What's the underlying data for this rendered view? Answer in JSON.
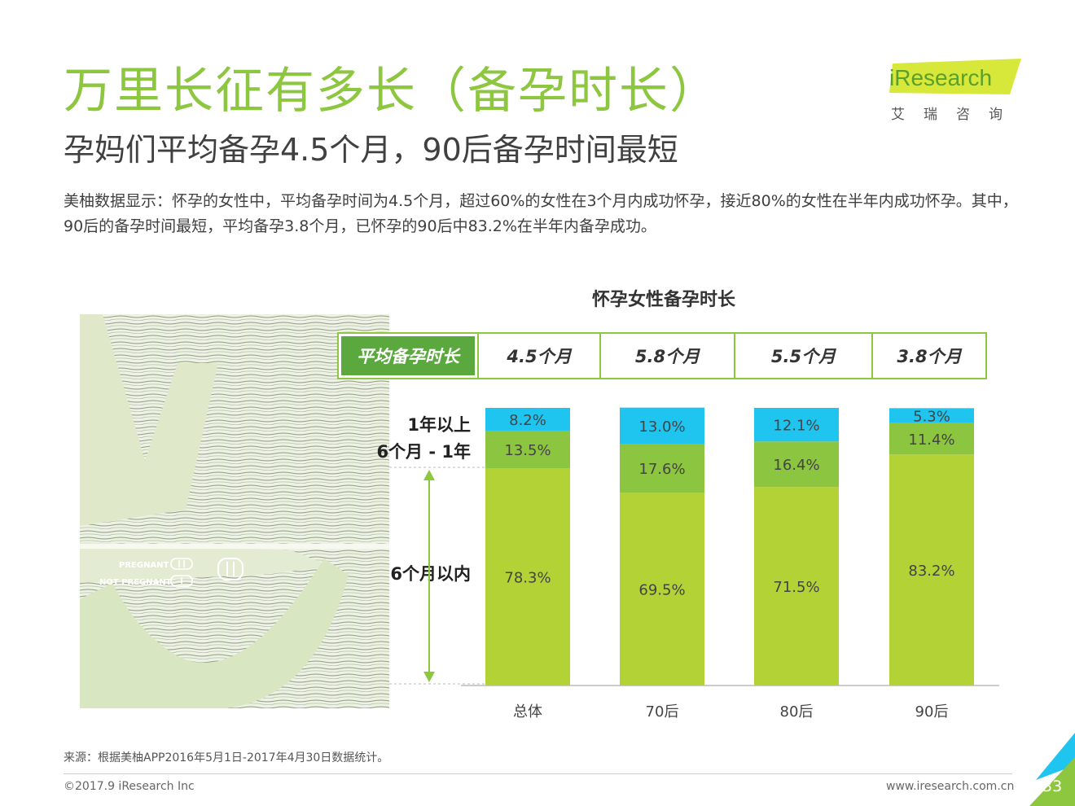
{
  "header": {
    "title": "万里长征有多长（备孕时长）",
    "subtitle": "孕妈们平均备孕4.5个月，90后备孕时间最短",
    "description": "美柚数据显示：怀孕的女性中，平均备孕时间为4.5个月，超过60%的女性在3个月内成功怀孕，接近80%的女性在半年内成功怀孕。其中，90后的备孕时间最短，平均备孕3.8个月，已怀孕的90后中83.2%在半年内备孕成功。"
  },
  "logo": {
    "brand": "iResearch",
    "sub": "艾瑞咨询"
  },
  "illustration": {
    "label_pregnant": "PREGNANT",
    "label_not_pregnant": "NOT PREGNANT"
  },
  "avg_table": {
    "header": "平均备孕时长",
    "values": [
      "4.5个月",
      "5.8个月",
      "5.5个月",
      "3.8个月"
    ]
  },
  "band_labels": {
    "over_one_year": "1年以上",
    "six_to_twelve": "6个月 - 1年",
    "within_six": "6个月以内"
  },
  "colors": {
    "brand_green": "#8dc63f",
    "seg_within_six": "#b2d235",
    "seg_six_to_twelve": "#8cc540",
    "seg_over_one_year": "#1fc4ef",
    "table_header": "#5aa83e"
  },
  "chart_data": {
    "type": "bar",
    "stacked": true,
    "title": "怀孕女性备孕时长",
    "categories": [
      "总体",
      "70后",
      "80后",
      "90后"
    ],
    "series": [
      {
        "name": "6个月以内",
        "values": [
          78.3,
          69.5,
          71.5,
          83.2
        ],
        "labels": [
          "78.3%",
          "69.5%",
          "71.5%",
          "83.2%"
        ]
      },
      {
        "name": "6个月 - 1年",
        "values": [
          13.5,
          17.6,
          16.4,
          11.4
        ],
        "labels": [
          "13.5%",
          "17.6%",
          "16.4%",
          "11.4%"
        ]
      },
      {
        "name": "1年以上",
        "values": [
          8.2,
          13.0,
          12.1,
          5.3
        ],
        "labels": [
          "8.2%",
          "13.0%",
          "12.1%",
          "5.3%"
        ]
      }
    ],
    "ylim": [
      0,
      100
    ],
    "grid": false
  },
  "footer": {
    "source": "来源：根据美柚APP2016年5月1日-2017年4月30日数据统计。",
    "copyright": "©2017.9 iResearch Inc",
    "website": "www.iresearch.com.cn",
    "page": "33"
  }
}
